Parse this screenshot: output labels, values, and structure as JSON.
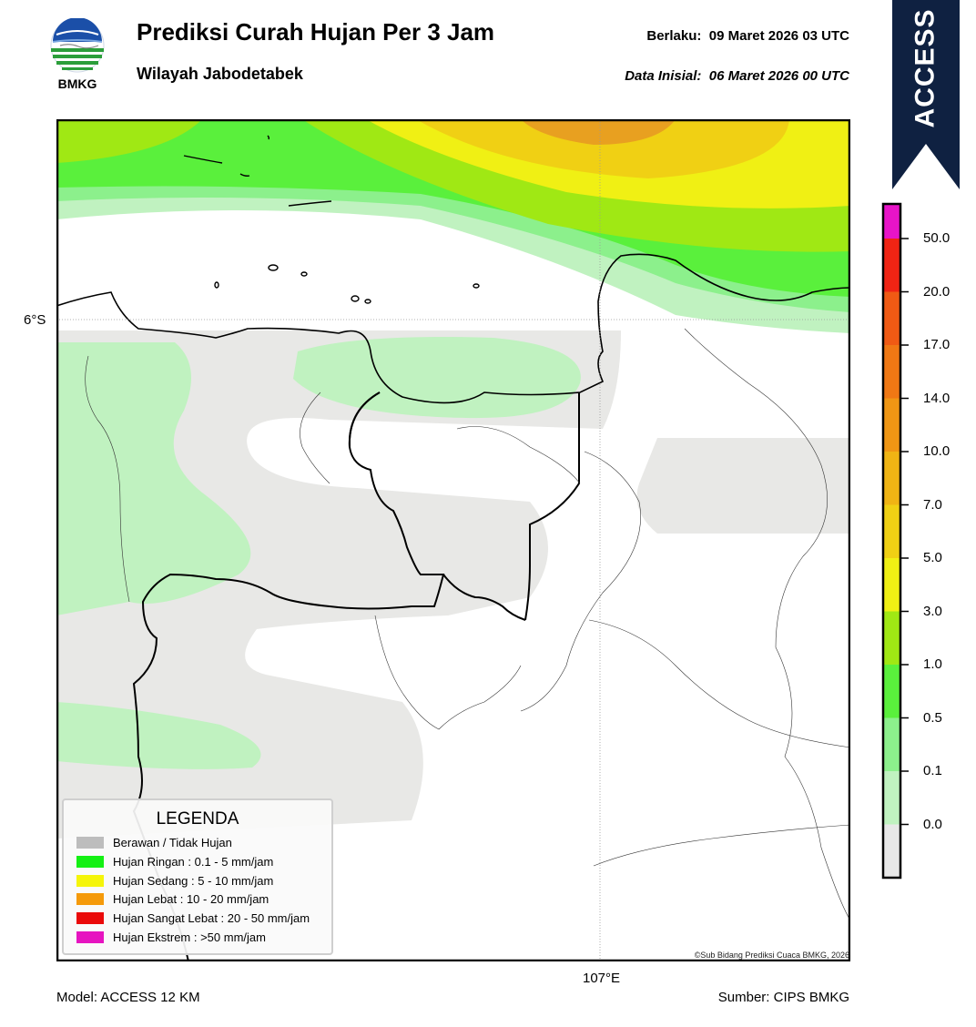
{
  "header": {
    "title": "Prediksi Curah Hujan Per 3 Jam",
    "subtitle": "Wilayah Jabodetabek",
    "valid_label": "Berlaku:",
    "valid_value": "09 Maret 2026 03 UTC",
    "init_label": "Data Inisial:",
    "init_value": "06 Maret 2026 00 UTC"
  },
  "logo": {
    "text": "BMKG"
  },
  "ribbon": {
    "text": "ACCESS",
    "color": "#0f2141"
  },
  "map": {
    "lat_label": "6°S",
    "lon_label": "107°E",
    "copyright": "©Sub Bidang Prediksi Cuaca BMKG, 2026"
  },
  "colorbar": {
    "labels": [
      "50.0",
      "20.0",
      "17.0",
      "14.0",
      "10.0",
      "7.0",
      "5.0",
      "3.0",
      "1.0",
      "0.5",
      "0.1",
      "0.0"
    ],
    "colors_bottom_to_top": [
      "#e8e8e8",
      "#c0f2c0",
      "#8cf08c",
      "#5af03c",
      "#a0e814",
      "#f0f014",
      "#f0d014",
      "#f0b414",
      "#f09614",
      "#f07814",
      "#f05a14",
      "#f02414",
      "#e814c8"
    ]
  },
  "legend": {
    "title": "LEGENDA",
    "items": [
      {
        "label": "Berawan / Tidak Hujan",
        "color": "#bdbdbd"
      },
      {
        "label": "Hujan Ringan : 0.1 - 5 mm/jam",
        "color": "#14f014"
      },
      {
        "label": "Hujan Sedang : 5 - 10 mm/jam",
        "color": "#f5f50a"
      },
      {
        "label": "Hujan Lebat : 10 - 20 mm/jam",
        "color": "#f59a0a"
      },
      {
        "label": "Hujan Sangat Lebat : 20 - 50 mm/jam",
        "color": "#ea0a0a"
      },
      {
        "label": "Hujan Ekstrem : >50 mm/jam",
        "color": "#e614c0"
      }
    ]
  },
  "footer": {
    "model": "Model: ACCESS 12 KM",
    "source": "Sumber: CIPS BMKG"
  }
}
